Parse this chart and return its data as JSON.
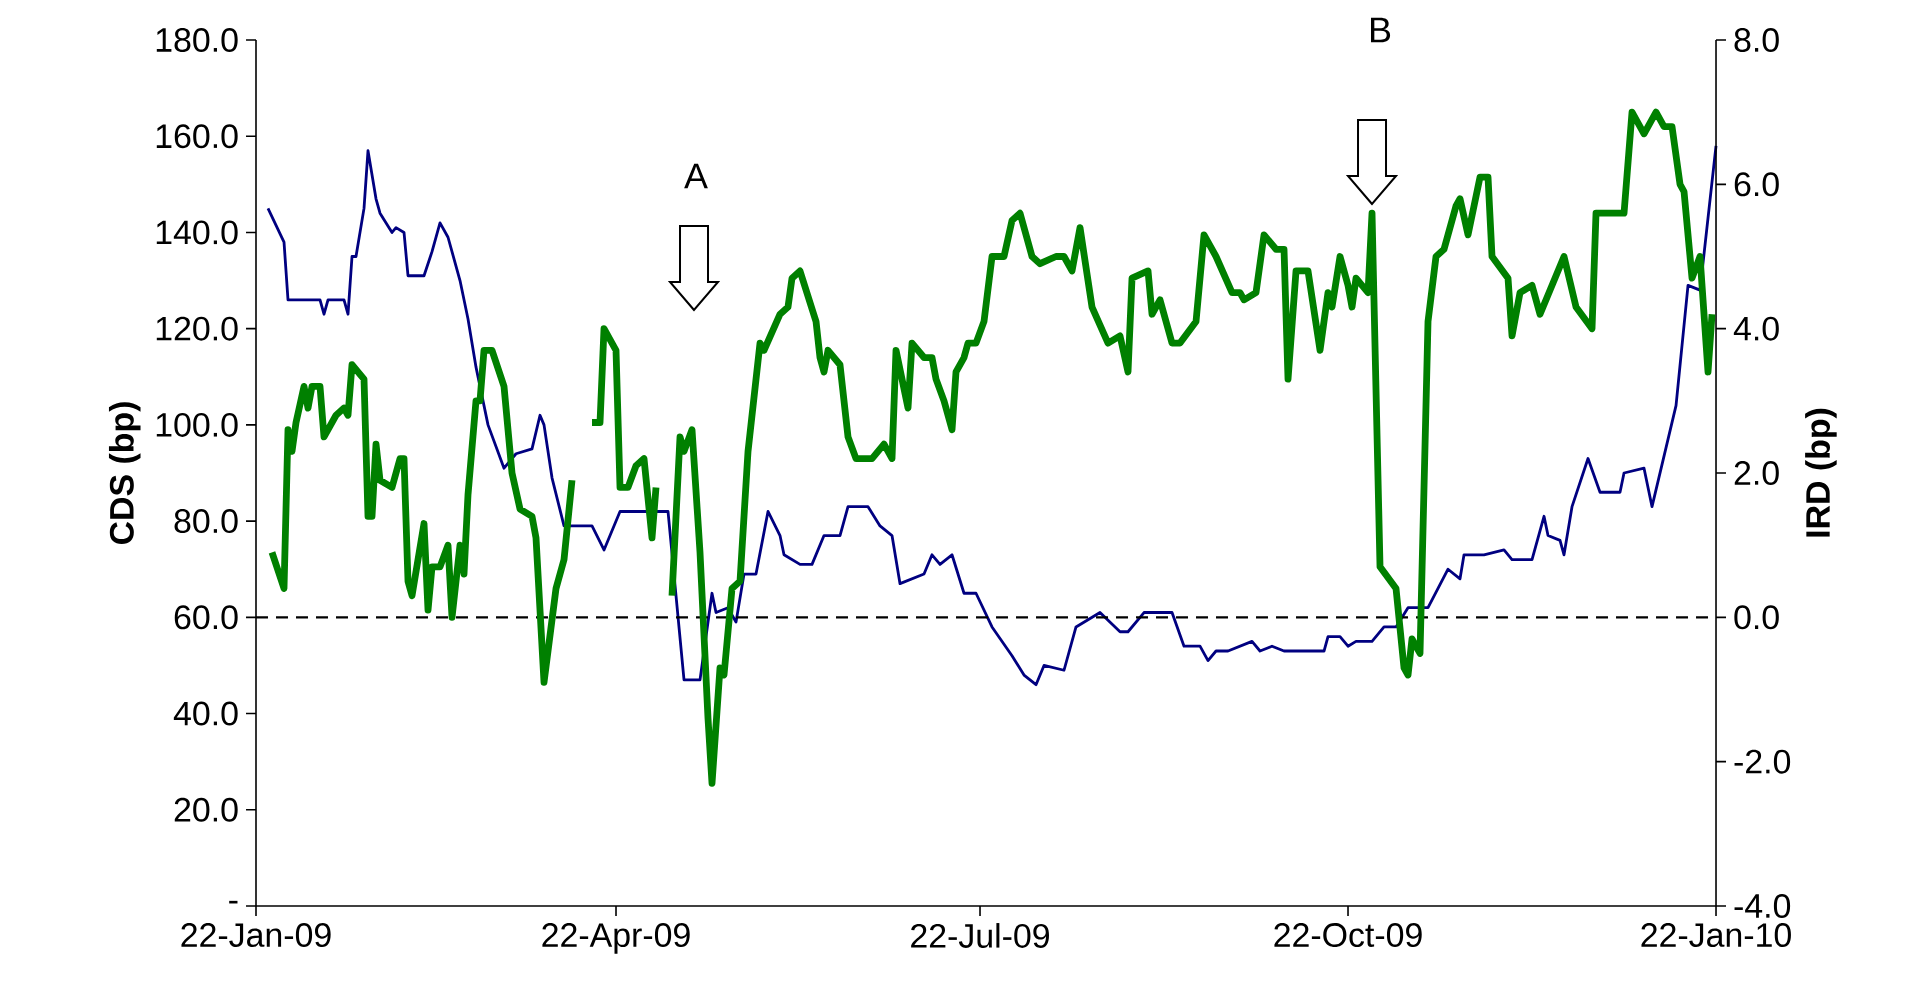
{
  "chart_data": {
    "type": "line",
    "ylabel": "CDS (bp)",
    "y2label": "IRD (bp)",
    "xlim": [
      "2009-01-22",
      "2010-01-22"
    ],
    "xticks": [
      {
        "value": "2009-01-22",
        "label": "22-Jan-09"
      },
      {
        "value": "2009-04-22",
        "label": "22-Apr-09"
      },
      {
        "value": "2009-07-22",
        "label": "22-Jul-09"
      },
      {
        "value": "2009-10-22",
        "label": "22-Oct-09"
      },
      {
        "value": "2010-01-22",
        "label": "22-Jan-10"
      }
    ],
    "ylim": [
      0,
      180
    ],
    "yticks": [
      {
        "value": 0,
        "label": "-"
      },
      {
        "value": 20,
        "label": "20.0"
      },
      {
        "value": 40,
        "label": "40.0"
      },
      {
        "value": 60,
        "label": "60.0"
      },
      {
        "value": 80,
        "label": "80.0"
      },
      {
        "value": 100,
        "label": "100.0"
      },
      {
        "value": 120,
        "label": "120.0"
      },
      {
        "value": 140,
        "label": "140.0"
      },
      {
        "value": 160,
        "label": "160.0"
      },
      {
        "value": 180,
        "label": "180.0"
      }
    ],
    "y2lim": [
      -4,
      8
    ],
    "y2ticks": [
      {
        "value": -4,
        "label": "-4.0"
      },
      {
        "value": -2,
        "label": "-2.0"
      },
      {
        "value": 0,
        "label": "0.0"
      },
      {
        "value": 2,
        "label": "2.0"
      },
      {
        "value": 4,
        "label": "4.0"
      },
      {
        "value": 6,
        "label": "6.0"
      },
      {
        "value": 8,
        "label": "8.0"
      }
    ],
    "series": [
      {
        "color": "#000080",
        "x": [
          "2009-01-25",
          "2009-01-29",
          "2009-01-30",
          "2009-02-07",
          "2009-02-08",
          "2009-02-09",
          "2009-02-13",
          "2009-02-14",
          "2009-02-15",
          "2009-02-16",
          "2009-02-18",
          "2009-02-19",
          "2009-02-21",
          "2009-02-22",
          "2009-02-25",
          "2009-02-26",
          "2009-02-28",
          "2009-03-01",
          "2009-03-05",
          "2009-03-07",
          "2009-03-09",
          "2009-03-11",
          "2009-03-14",
          "2009-03-16",
          "2009-03-18",
          "2009-03-21",
          "2009-03-25",
          "2009-03-28",
          "2009-04-01",
          "2009-04-03",
          "2009-04-04",
          "2009-04-06",
          "2009-04-09",
          "2009-04-16",
          "2009-04-19",
          "2009-04-23",
          "2009-05-05",
          "2009-05-09",
          "2009-05-13",
          "2009-05-16",
          "2009-05-17",
          "2009-05-20",
          "2009-05-22",
          "2009-05-24",
          "2009-05-27",
          "2009-05-30",
          "2009-06-02",
          "2009-06-03",
          "2009-06-07",
          "2009-06-10",
          "2009-06-13",
          "2009-06-17",
          "2009-06-19",
          "2009-06-24",
          "2009-06-27",
          "2009-06-30",
          "2009-07-02",
          "2009-07-08",
          "2009-07-10",
          "2009-07-12",
          "2009-07-15",
          "2009-07-18",
          "2009-07-21",
          "2009-07-25",
          "2009-07-30",
          "2009-08-02",
          "2009-08-05",
          "2009-08-07",
          "2009-08-12",
          "2009-08-15",
          "2009-08-21",
          "2009-08-26",
          "2009-08-28",
          "2009-09-01",
          "2009-09-08",
          "2009-09-11",
          "2009-09-15",
          "2009-09-17",
          "2009-09-19",
          "2009-09-22",
          "2009-09-28",
          "2009-09-30",
          "2009-10-03",
          "2009-10-06",
          "2009-10-16",
          "2009-10-17",
          "2009-10-20",
          "2009-10-22",
          "2009-10-24",
          "2009-10-28",
          "2009-10-31",
          "2009-11-03",
          "2009-11-06",
          "2009-11-11",
          "2009-11-16",
          "2009-11-19",
          "2009-11-20",
          "2009-11-25",
          "2009-11-30",
          "2009-12-02",
          "2009-12-07",
          "2009-12-10",
          "2009-12-11",
          "2009-12-14",
          "2009-12-15",
          "2009-12-17",
          "2009-12-21",
          "2009-12-24",
          "2009-12-29",
          "2009-12-30",
          "2010-01-04",
          "2010-01-06",
          "2010-01-12",
          "2010-01-15",
          "2010-01-18",
          "2010-01-22"
        ],
        "values": [
          145,
          138,
          126,
          126,
          123,
          126,
          126,
          123,
          135,
          135,
          145,
          157,
          147,
          144,
          140,
          141,
          140,
          131,
          131,
          136,
          142,
          139,
          130,
          122,
          112,
          100,
          91,
          94,
          95,
          102,
          100,
          89,
          79,
          79,
          74,
          82,
          82,
          47,
          47,
          65,
          61,
          62,
          59,
          69,
          69,
          82,
          77,
          73,
          71,
          71,
          77,
          77,
          83,
          83,
          79,
          77,
          67,
          69,
          73,
          71,
          73,
          65,
          65,
          58,
          52,
          48,
          46,
          50,
          49,
          58,
          61,
          57,
          57,
          61,
          61,
          54,
          54,
          51,
          53,
          53,
          55,
          53,
          54,
          53,
          53,
          56,
          56,
          54,
          55,
          55,
          58,
          58,
          62,
          62,
          70,
          68,
          73,
          73,
          74,
          72,
          72,
          81,
          77,
          76,
          73,
          83,
          93,
          86,
          86,
          90,
          91,
          83,
          104,
          129,
          128,
          158
        ]
      },
      {
        "color": "#008000",
        "axis": "y2",
        "x": [
          "2009-01-26",
          "2009-01-29",
          "2009-01-30",
          "2009-01-31",
          "2009-02-01",
          "2009-02-03",
          "2009-02-04",
          "2009-02-05",
          "2009-02-07",
          "2009-02-08",
          "2009-02-11",
          "2009-02-13",
          "2009-02-14",
          "2009-02-15",
          "2009-02-18",
          "2009-02-19",
          "2009-02-20",
          "2009-02-21",
          "2009-02-22",
          "2009-02-25",
          "2009-02-27",
          "2009-02-28",
          "2009-03-01",
          "2009-03-02",
          "2009-03-05",
          "2009-03-06",
          "2009-03-07",
          "2009-03-09",
          "2009-03-11",
          "2009-03-12",
          "2009-03-14",
          "2009-03-15",
          "2009-03-16",
          "2009-03-18",
          "2009-03-19",
          "2009-03-20",
          "2009-03-22",
          "2009-03-25",
          "2009-03-27",
          "2009-03-29",
          "2009-04-01",
          "2009-04-02",
          "2009-04-04",
          "2009-04-07",
          "2009-04-09",
          "2009-04-11",
          "2009-04-14",
          "2009-04-16",
          "2009-04-18",
          "2009-04-19",
          "2009-04-22",
          "2009-04-23",
          "2009-04-25",
          "2009-04-27",
          "2009-04-29",
          "2009-05-01",
          "2009-05-02",
          "2009-05-04",
          "2009-05-06",
          "2009-05-08",
          "2009-05-09",
          "2009-05-11",
          "2009-05-13",
          "2009-05-15",
          "2009-05-16",
          "2009-05-18",
          "2009-05-19",
          "2009-05-21",
          "2009-05-23",
          "2009-05-25",
          "2009-05-28",
          "2009-05-29",
          "2009-06-02",
          "2009-06-04",
          "2009-06-05",
          "2009-06-07",
          "2009-06-11",
          "2009-06-12",
          "2009-06-13",
          "2009-06-14",
          "2009-06-17",
          "2009-06-19",
          "2009-06-21",
          "2009-06-25",
          "2009-06-28",
          "2009-06-30",
          "2009-07-01",
          "2009-07-04",
          "2009-07-05",
          "2009-07-08",
          "2009-07-10",
          "2009-07-11",
          "2009-07-13",
          "2009-07-15",
          "2009-07-16",
          "2009-07-18",
          "2009-07-19",
          "2009-07-21",
          "2009-07-23",
          "2009-07-25",
          "2009-07-28",
          "2009-07-30",
          "2009-08-01",
          "2009-08-04",
          "2009-08-06",
          "2009-08-10",
          "2009-08-12",
          "2009-08-14",
          "2009-08-16",
          "2009-08-19",
          "2009-08-23",
          "2009-08-26",
          "2009-08-28",
          "2009-08-29",
          "2009-09-02",
          "2009-09-03",
          "2009-09-05",
          "2009-09-08",
          "2009-09-10",
          "2009-09-14",
          "2009-09-16",
          "2009-09-19",
          "2009-09-23",
          "2009-09-25",
          "2009-09-26",
          "2009-09-29",
          "2009-10-01",
          "2009-10-04",
          "2009-10-06",
          "2009-10-07",
          "2009-10-09",
          "2009-10-12",
          "2009-10-15",
          "2009-10-17",
          "2009-10-18",
          "2009-10-20",
          "2009-10-22",
          "2009-10-23",
          "2009-10-24",
          "2009-10-27",
          "2009-10-28",
          "2009-10-30",
          "2009-11-03",
          "2009-11-05",
          "2009-11-06",
          "2009-11-07",
          "2009-11-09",
          "2009-11-11",
          "2009-11-13",
          "2009-11-15",
          "2009-11-18",
          "2009-11-19",
          "2009-11-21",
          "2009-11-24",
          "2009-11-26",
          "2009-11-27",
          "2009-12-01",
          "2009-12-02",
          "2009-12-04",
          "2009-12-07",
          "2009-12-09",
          "2009-12-15",
          "2009-12-18",
          "2009-12-22",
          "2009-12-23",
          "2009-12-30",
          "2010-01-01",
          "2010-01-04",
          "2010-01-07",
          "2010-01-09",
          "2010-01-11",
          "2010-01-13",
          "2010-01-14",
          "2010-01-16",
          "2010-01-18",
          "2010-01-20",
          "2010-01-21"
        ],
        "values": [
          0.9,
          0.4,
          2.6,
          2.3,
          2.7,
          3.2,
          2.9,
          3.2,
          3.2,
          2.5,
          2.8,
          2.9,
          2.8,
          3.5,
          3.3,
          1.4,
          1.4,
          2.4,
          1.9,
          1.8,
          2.2,
          2.2,
          0.5,
          0.3,
          1.3,
          0.1,
          0.7,
          0.7,
          1.0,
          0.0,
          1.0,
          0.6,
          1.7,
          3.0,
          3.0,
          3.7,
          3.7,
          3.2,
          2.0,
          1.5,
          1.4,
          1.1,
          -0.9,
          0.4,
          0.8,
          1.9,
          null,
          2.7,
          2.7,
          4.0,
          3.7,
          1.8,
          1.8,
          2.1,
          2.2,
          1.1,
          1.8,
          null,
          0.3,
          2.5,
          2.3,
          2.6,
          0.9,
          -1.4,
          -2.3,
          -0.7,
          -0.8,
          0.4,
          0.5,
          2.3,
          3.8,
          3.7,
          4.2,
          4.3,
          4.7,
          4.8,
          4.1,
          3.6,
          3.4,
          3.7,
          3.5,
          2.5,
          2.2,
          2.2,
          2.4,
          2.2,
          3.7,
          2.9,
          3.8,
          3.6,
          3.6,
          3.3,
          3.0,
          2.6,
          3.4,
          3.6,
          3.8,
          3.8,
          4.1,
          5.0,
          5.0,
          5.5,
          5.6,
          5.0,
          4.9,
          5.0,
          5.0,
          4.8,
          5.4,
          4.3,
          3.8,
          3.9,
          3.4,
          4.7,
          4.8,
          4.2,
          4.4,
          3.8,
          3.8,
          4.1,
          5.3,
          5.0,
          4.5,
          4.5,
          4.4,
          4.5,
          5.3,
          5.1,
          5.1,
          3.3,
          4.8,
          4.8,
          3.7,
          4.5,
          4.3,
          5.0,
          4.6,
          4.3,
          4.7,
          4.5,
          5.6,
          0.7,
          0.4,
          -0.7,
          -0.8,
          -0.3,
          -0.5,
          4.1,
          5.0,
          5.1,
          5.7,
          5.8,
          5.3,
          6.1,
          6.1,
          5.0,
          4.7,
          3.9,
          4.5,
          4.6,
          4.2,
          5.0,
          4.3,
          4.0,
          5.6,
          5.6,
          7.0,
          6.7,
          7.0,
          6.8,
          6.8,
          6.0,
          5.9,
          4.7,
          5.0,
          3.4,
          4.2
        ]
      }
    ],
    "ref_lines": [
      {
        "axis": "y2",
        "value": 0,
        "color": "#000000",
        "line_style": "dashed"
      }
    ],
    "annotations": [
      "A",
      "B"
    ]
  }
}
